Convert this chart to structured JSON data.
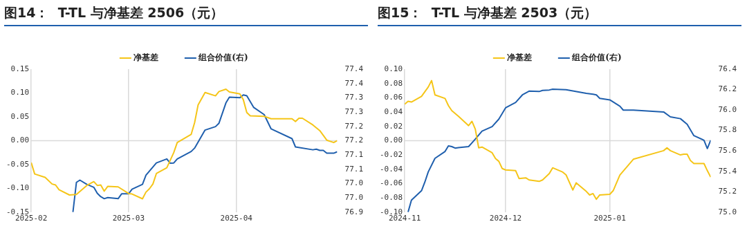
{
  "chart_data": [
    {
      "type": "line",
      "title": "图14：  T-TL 与净基差 2506（元）",
      "legend": "top",
      "grid": "x",
      "marker": "none",
      "line_style": "solid",
      "xlim": [
        "2025-02-01",
        "2025-04-30"
      ],
      "xticks": [
        {
          "value": "2025-02-01",
          "label": "2025-02"
        },
        {
          "value": "2025-03-01",
          "label": "2025-03"
        },
        {
          "value": "2025-04-01",
          "label": "2025-04"
        }
      ],
      "ylim": [
        -0.15,
        0.15
      ],
      "yticks": [
        {
          "value": -0.15,
          "label": "-0.15"
        },
        {
          "value": -0.1,
          "label": "-0.10"
        },
        {
          "value": -0.05,
          "label": "-0.05"
        },
        {
          "value": 0,
          "label": "0.00"
        },
        {
          "value": 0.05,
          "label": "0.05"
        },
        {
          "value": 0.1,
          "label": "0.10"
        },
        {
          "value": 0.15,
          "label": "0.15"
        }
      ],
      "y2lim": [
        76.9,
        77.4
      ],
      "y2ticks": [
        {
          "value": 76.9,
          "label": "76.9"
        },
        {
          "value": 76.95,
          "label": "77.0"
        },
        {
          "value": 77.0,
          "label": "77.0"
        },
        {
          "value": 77.05,
          "label": "77.1"
        },
        {
          "value": 77.1,
          "label": "77.1"
        },
        {
          "value": 77.15,
          "label": "77.2"
        },
        {
          "value": 77.2,
          "label": "77.2"
        },
        {
          "value": 77.25,
          "label": "77.3"
        },
        {
          "value": 77.3,
          "label": "77.3"
        },
        {
          "value": 77.35,
          "label": "77.4"
        },
        {
          "value": 77.4,
          "label": "77.4"
        }
      ],
      "ref_lines": [
        {
          "axis": "y",
          "value": 0,
          "color": "#d9d9d9"
        }
      ],
      "series": [
        {
          "name": "净基差",
          "color": "#f5c518",
          "x": [
            "2025-02-01",
            "2025-02-02",
            "2025-02-05",
            "2025-02-07",
            "2025-02-08",
            "2025-02-09",
            "2025-02-12",
            "2025-02-14",
            "2025-02-17",
            "2025-02-19",
            "2025-02-20",
            "2025-02-21",
            "2025-02-22",
            "2025-02-23",
            "2025-02-26",
            "2025-03-01",
            "2025-03-02",
            "2025-03-05",
            "2025-03-06",
            "2025-03-07",
            "2025-03-08",
            "2025-03-09",
            "2025-03-12",
            "2025-03-14",
            "2025-03-15",
            "2025-03-19",
            "2025-03-20",
            "2025-03-21",
            "2025-03-23",
            "2025-03-26",
            "2025-03-27",
            "2025-03-29",
            "2025-03-30",
            "2025-04-02",
            "2025-04-03",
            "2025-04-04",
            "2025-04-05",
            "2025-04-09",
            "2025-04-11",
            "2025-04-17",
            "2025-04-18",
            "2025-04-19",
            "2025-04-20",
            "2025-04-23",
            "2025-04-25",
            "2025-04-27",
            "2025-04-29",
            "2025-04-30"
          ],
          "values": [
            -0.046,
            -0.07,
            -0.077,
            -0.091,
            -0.093,
            -0.103,
            -0.114,
            -0.113,
            -0.094,
            -0.086,
            -0.094,
            -0.093,
            -0.106,
            -0.096,
            -0.097,
            -0.111,
            -0.112,
            -0.122,
            -0.108,
            -0.101,
            -0.091,
            -0.069,
            -0.057,
            -0.025,
            -0.004,
            0.013,
            0.038,
            0.075,
            0.101,
            0.094,
            0.103,
            0.108,
            0.102,
            0.098,
            0.086,
            0.059,
            0.052,
            0.051,
            0.046,
            0.046,
            0.04,
            0.047,
            0.047,
            0.033,
            0.021,
            0.001,
            -0.004,
            0.0
          ]
        },
        {
          "name": "组合价值(右)",
          "color": "#1f5fad",
          "axis": "y2",
          "x": [
            "2025-02-13",
            "2025-02-14",
            "2025-02-15",
            "2025-02-17",
            "2025-02-19",
            "2025-02-20",
            "2025-02-21",
            "2025-02-22",
            "2025-02-23",
            "2025-02-26",
            "2025-02-27",
            "2025-03-01",
            "2025-03-02",
            "2025-03-05",
            "2025-03-06",
            "2025-03-09",
            "2025-03-12",
            "2025-03-13",
            "2025-03-14",
            "2025-03-15",
            "2025-03-19",
            "2025-03-20",
            "2025-03-23",
            "2025-03-26",
            "2025-03-27",
            "2025-03-29",
            "2025-03-30",
            "2025-04-02",
            "2025-04-03",
            "2025-04-04",
            "2025-04-06",
            "2025-04-09",
            "2025-04-11",
            "2025-04-17",
            "2025-04-18",
            "2025-04-23",
            "2025-04-24",
            "2025-04-25",
            "2025-04-26",
            "2025-04-27",
            "2025-04-29",
            "2025-04-30"
          ],
          "values": [
            76.9,
            77.004,
            77.012,
            76.997,
            76.987,
            76.966,
            76.954,
            76.947,
            76.951,
            76.947,
            76.964,
            76.964,
            76.98,
            76.997,
            77.029,
            77.072,
            77.086,
            77.071,
            77.072,
            77.086,
            77.112,
            77.124,
            77.187,
            77.199,
            77.211,
            77.282,
            77.302,
            77.3,
            77.31,
            77.307,
            77.266,
            77.241,
            77.191,
            77.157,
            77.128,
            77.118,
            77.12,
            77.116,
            77.116,
            77.106,
            77.106,
            77.111
          ]
        }
      ]
    },
    {
      "type": "line",
      "title": "图15：  T-TL 与净基差 2503（元）",
      "legend": "top",
      "grid": "x",
      "marker": "none",
      "line_style": "solid",
      "xlim": [
        "2024-11-01",
        "2025-01-31"
      ],
      "xticks": [
        {
          "value": "2024-11-01",
          "label": "2024-11"
        },
        {
          "value": "2024-12-01",
          "label": "2024-12"
        },
        {
          "value": "2025-01-01",
          "label": "2025-01"
        }
      ],
      "ylim": [
        -0.1,
        0.1
      ],
      "yticks": [
        {
          "value": -0.1,
          "label": "-0.10"
        },
        {
          "value": -0.08,
          "label": "-0.08"
        },
        {
          "value": -0.06,
          "label": "-0.06"
        },
        {
          "value": -0.04,
          "label": "-0.04"
        },
        {
          "value": -0.02,
          "label": "-0.02"
        },
        {
          "value": 0,
          "label": "0.00"
        },
        {
          "value": 0.02,
          "label": "0.02"
        },
        {
          "value": 0.04,
          "label": "0.04"
        },
        {
          "value": 0.06,
          "label": "0.06"
        },
        {
          "value": 0.08,
          "label": "0.08"
        },
        {
          "value": 0.1,
          "label": "0.10"
        }
      ],
      "y2lim": [
        75.0,
        76.4
      ],
      "y2ticks": [
        {
          "value": 75.0,
          "label": "75.0"
        },
        {
          "value": 75.2,
          "label": "75.2"
        },
        {
          "value": 75.4,
          "label": "75.4"
        },
        {
          "value": 75.6,
          "label": "75.6"
        },
        {
          "value": 75.8,
          "label": "75.8"
        },
        {
          "value": 76.0,
          "label": "76.0"
        },
        {
          "value": 76.2,
          "label": "76.2"
        },
        {
          "value": 76.4,
          "label": "76.4"
        }
      ],
      "ref_lines": [
        {
          "axis": "y",
          "value": 0,
          "color": "#d9d9d9"
        }
      ],
      "series": [
        {
          "name": "净基差",
          "color": "#f5c518",
          "x": [
            "2024-11-01",
            "2024-11-02",
            "2024-11-03",
            "2024-11-06",
            "2024-11-08",
            "2024-11-09",
            "2024-11-10",
            "2024-11-13",
            "2024-11-14",
            "2024-11-15",
            "2024-11-17",
            "2024-11-20",
            "2024-11-21",
            "2024-11-22",
            "2024-11-23",
            "2024-11-24",
            "2024-11-27",
            "2024-11-28",
            "2024-11-29",
            "2024-11-30",
            "2024-12-01",
            "2024-12-04",
            "2024-12-05",
            "2024-12-07",
            "2024-12-08",
            "2024-12-11",
            "2024-12-12",
            "2024-12-14",
            "2024-12-15",
            "2024-12-18",
            "2024-12-19",
            "2024-12-21",
            "2024-12-22",
            "2024-12-25",
            "2024-12-26",
            "2024-12-27",
            "2024-12-28",
            "2024-12-29",
            "2025-01-01",
            "2025-01-02",
            "2025-01-04",
            "2025-01-08",
            "2025-01-17",
            "2025-01-18",
            "2025-01-19",
            "2025-01-22",
            "2025-01-23",
            "2025-01-24",
            "2025-01-25",
            "2025-01-26",
            "2025-01-29",
            "2025-01-30",
            "2025-01-31"
          ],
          "values": [
            0.051,
            0.055,
            0.054,
            0.062,
            0.075,
            0.084,
            0.064,
            0.059,
            0.049,
            0.042,
            0.034,
            0.021,
            0.027,
            0.016,
            -0.01,
            -0.009,
            -0.017,
            -0.025,
            -0.029,
            -0.039,
            -0.041,
            -0.042,
            -0.053,
            -0.052,
            -0.055,
            -0.057,
            -0.055,
            -0.046,
            -0.038,
            -0.044,
            -0.048,
            -0.069,
            -0.059,
            -0.071,
            -0.076,
            -0.074,
            -0.082,
            -0.076,
            -0.075,
            -0.07,
            -0.048,
            -0.026,
            -0.014,
            -0.01,
            -0.014,
            -0.02,
            -0.019,
            -0.019,
            -0.028,
            -0.032,
            -0.032,
            -0.042,
            -0.051
          ]
        },
        {
          "name": "组合价值(右)",
          "color": "#1f5fad",
          "axis": "y2",
          "x": [
            "2024-11-02",
            "2024-11-03",
            "2024-11-06",
            "2024-11-07",
            "2024-11-08",
            "2024-11-10",
            "2024-11-13",
            "2024-11-14",
            "2024-11-15",
            "2024-11-16",
            "2024-11-17",
            "2024-11-20",
            "2024-11-21",
            "2024-11-22",
            "2024-11-24",
            "2024-11-27",
            "2024-11-29",
            "2024-12-01",
            "2024-12-04",
            "2024-12-06",
            "2024-12-08",
            "2024-12-11",
            "2024-12-12",
            "2024-12-14",
            "2024-12-15",
            "2024-12-19",
            "2024-12-21",
            "2024-12-25",
            "2024-12-27",
            "2024-12-28",
            "2024-12-29",
            "2025-01-01",
            "2025-01-04",
            "2025-01-05",
            "2025-01-08",
            "2025-01-17",
            "2025-01-19",
            "2025-01-22",
            "2025-01-24",
            "2025-01-26",
            "2025-01-29",
            "2025-01-30",
            "2025-01-31"
          ],
          "values": [
            75.0,
            75.117,
            75.21,
            75.295,
            75.394,
            75.527,
            75.594,
            75.649,
            75.642,
            75.627,
            75.632,
            75.642,
            75.678,
            75.715,
            75.793,
            75.837,
            75.911,
            76.021,
            76.074,
            76.148,
            76.185,
            76.181,
            76.192,
            76.196,
            76.203,
            76.198,
            76.187,
            76.163,
            76.154,
            76.148,
            76.114,
            76.099,
            76.037,
            75.999,
            75.999,
            75.981,
            75.933,
            75.915,
            75.86,
            75.749,
            75.704,
            75.623,
            75.704
          ]
        }
      ]
    }
  ]
}
